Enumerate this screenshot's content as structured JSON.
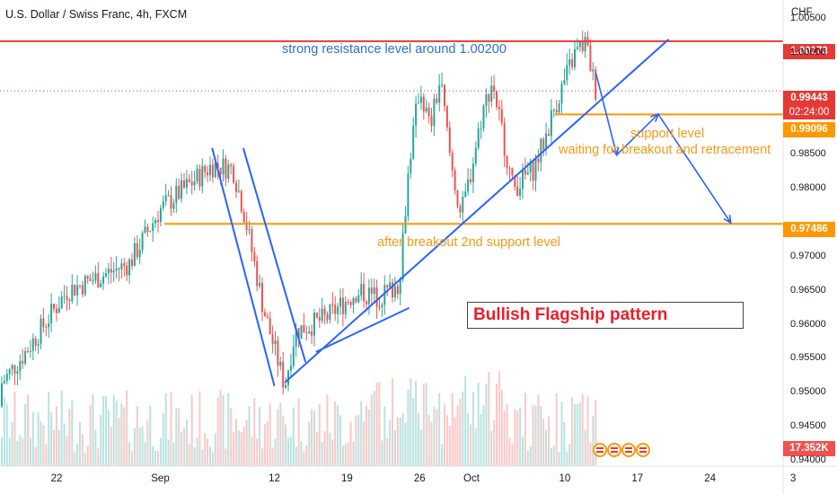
{
  "window": {
    "title": "U.S. Dollar / Swiss Franc, 4h, FXCM",
    "currency": "CHF"
  },
  "price_tags": {
    "resistance": "1.00173",
    "last_price": "0.99443",
    "countdown": "02:24:00",
    "support": "0.99096",
    "second_support": "0.97486",
    "volume": "17.352K"
  },
  "annotations": {
    "resistance_text": "strong resistance level around 1.00200",
    "support_text": "support level",
    "waiting_text": "waiting for breakout and retracement",
    "second_support_text": "after breakout 2nd support level",
    "pattern_label": "Bullish Flagship pattern"
  },
  "colors": {
    "up": "#26a69a",
    "down": "#ef5350",
    "resistance": "#e53935",
    "support": "#ff9800",
    "trendline": "#2962ff",
    "pattern_text": "#e91e2c"
  },
  "icons": [
    "us-flag-icon",
    "us-flag-icon",
    "us-flag-icon",
    "us-flag-icon"
  ],
  "chart_data": {
    "type": "candlestick",
    "symbol": "USDCHF",
    "timeframe": "4h",
    "ylim": [
      0.9392,
      1.0078
    ],
    "y_ticks": [
      "1.00500",
      "1.00000",
      "0.98500",
      "0.98000",
      "0.97000",
      "0.96500",
      "0.96000",
      "0.95500",
      "0.95000",
      "0.94500",
      "0.94000"
    ],
    "x_ticks": [
      "22",
      "Sep",
      "12",
      "19",
      "26",
      "Oct",
      "10",
      "17",
      "24",
      "3"
    ],
    "levels": [
      {
        "name": "resistance",
        "price": 1.00173
      },
      {
        "name": "support",
        "price": 0.99096
      },
      {
        "name": "second_support",
        "price": 0.97486
      }
    ],
    "anchors": [
      {
        "x": "Aug 15",
        "y": 0.948
      },
      {
        "x": "Aug 19",
        "y": 0.956
      },
      {
        "x": "Aug 23",
        "y": 0.965
      },
      {
        "x": "Aug 29",
        "y": 0.969
      },
      {
        "x": "Sep 1",
        "y": 0.977
      },
      {
        "x": "Sep 6",
        "y": 0.9835
      },
      {
        "x": "Sep 8",
        "y": 0.983
      },
      {
        "x": "Sep 9",
        "y": 0.977
      },
      {
        "x": "Sep 11",
        "y": 0.962
      },
      {
        "x": "Sep 13",
        "y": 0.951
      },
      {
        "x": "Sep 14",
        "y": 0.959
      },
      {
        "x": "Sep 17",
        "y": 0.961
      },
      {
        "x": "Sep 20",
        "y": 0.965
      },
      {
        "x": "Sep 22",
        "y": 0.964
      },
      {
        "x": "Sep 24",
        "y": 0.966
      },
      {
        "x": "Sep 25",
        "y": 0.984
      },
      {
        "x": "Sep 26",
        "y": 0.995
      },
      {
        "x": "Sep 27",
        "y": 0.989
      },
      {
        "x": "Sep 28",
        "y": 0.996
      },
      {
        "x": "Sep 29",
        "y": 0.984
      },
      {
        "x": "Sep 30",
        "y": 0.976
      },
      {
        "x": "Oct 1",
        "y": 0.983
      },
      {
        "x": "Oct 2",
        "y": 0.991
      },
      {
        "x": "Oct 3",
        "y": 0.996
      },
      {
        "x": "Oct 4",
        "y": 0.988
      },
      {
        "x": "Oct 5",
        "y": 0.98
      },
      {
        "x": "Oct 7",
        "y": 0.983
      },
      {
        "x": "Oct 8",
        "y": 0.987
      },
      {
        "x": "Oct 9",
        "y": 0.992
      },
      {
        "x": "Oct 11",
        "y": 1.0
      },
      {
        "x": "Oct 12",
        "y": 1.0015
      },
      {
        "x": "Oct 13",
        "y": 0.9944
      }
    ],
    "drawings": [
      {
        "type": "flag_pole_line",
        "from": {
          "x": "Sep 6",
          "y": 0.986
        },
        "to": {
          "x": "Sep 12",
          "y": 0.951
        }
      },
      {
        "type": "flag_pole_line",
        "from": {
          "x": "Sep 9",
          "y": 0.986
        },
        "to": {
          "x": "Sep 15",
          "y": 0.9545
        }
      },
      {
        "type": "trendline",
        "from": {
          "x": "Sep 13",
          "y": 0.9515
        },
        "to": {
          "x": "Oct 20",
          "y": 1.002
        }
      },
      {
        "type": "trendline",
        "from": {
          "x": "Sep 16",
          "y": 0.956
        },
        "to": {
          "x": "Sep 25",
          "y": 0.9625
        }
      },
      {
        "type": "projection",
        "points": [
          {
            "x": "Oct 13",
            "y": 0.997
          },
          {
            "x": "Oct 15",
            "y": 0.985
          },
          {
            "x": "Oct 19",
            "y": 0.991
          },
          {
            "x": "Oct 26",
            "y": 0.975
          }
        ]
      }
    ]
  }
}
